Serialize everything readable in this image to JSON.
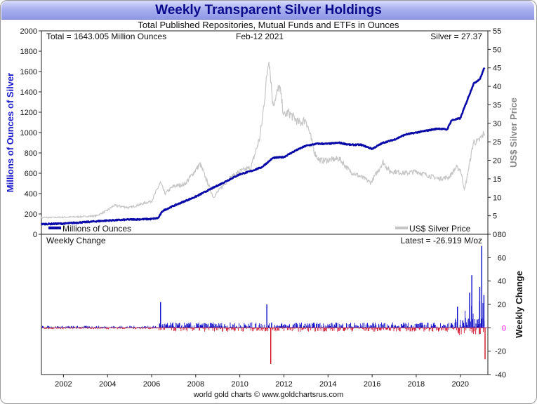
{
  "title": "Weekly Transparent Silver Holdings",
  "subtitle": "Total Published Repositories, Mutual Funds and ETFs in Ounces",
  "footer": "world gold charts © www.goldchartsrus.com",
  "colors": {
    "holdings": "#0a0aa8",
    "silver_price": "#c6c6c6",
    "change_positive": "#1010c8",
    "change_negative": "#d0102a",
    "zero_label": "#ff00ff",
    "title_text": "#0a0a8c"
  },
  "chart_data": [
    {
      "type": "line",
      "panel": "top",
      "info": {
        "total": "Total = 1643.005 Million Ounces",
        "date": "Feb-12  2021",
        "silver": "Silver = 27.37"
      },
      "ylabel": "Millions of Ounces of Silver",
      "ylabel_right": "US$ Silver Price",
      "ylim": [
        0,
        2000
      ],
      "ylim_right": [
        0,
        55
      ],
      "yticks": [
        0,
        200,
        400,
        600,
        800,
        1000,
        1200,
        1400,
        1600,
        1800,
        2000
      ],
      "yticks_right": [
        0,
        5,
        10,
        15,
        20,
        25,
        30,
        35,
        40,
        45,
        50,
        55
      ],
      "xlim": [
        2001.0,
        2021.25
      ],
      "grid": false,
      "legend": [
        {
          "label": "Millions of Ounces",
          "position": "bottom-left"
        },
        {
          "label": "US$ Silver Price",
          "position": "bottom-right"
        }
      ],
      "series": [
        {
          "name": "Millions of Ounces",
          "axis": "left",
          "x": [
            2001.0,
            2002.0,
            2003.0,
            2004.0,
            2005.0,
            2006.0,
            2006.3,
            2006.5,
            2007.0,
            2008.0,
            2009.0,
            2010.0,
            2010.5,
            2011.0,
            2011.5,
            2012.0,
            2012.5,
            2013.0,
            2013.5,
            2014.0,
            2014.5,
            2015.0,
            2015.5,
            2016.0,
            2016.5,
            2017.0,
            2017.5,
            2018.0,
            2018.5,
            2019.0,
            2019.4,
            2019.6,
            2020.0,
            2020.3,
            2020.6,
            2020.9,
            2021.1
          ],
          "values": [
            100,
            105,
            120,
            135,
            145,
            150,
            160,
            230,
            280,
            370,
            480,
            590,
            620,
            660,
            750,
            760,
            820,
            870,
            890,
            890,
            900,
            880,
            880,
            840,
            900,
            930,
            980,
            1000,
            1020,
            1040,
            1030,
            1120,
            1140,
            1310,
            1480,
            1530,
            1643
          ]
        },
        {
          "name": "US$ Silver Price",
          "axis": "right",
          "x": [
            2001.0,
            2002.0,
            2003.0,
            2003.5,
            2004.0,
            2004.3,
            2005.0,
            2006.0,
            2006.4,
            2006.6,
            2007.0,
            2007.5,
            2008.2,
            2008.8,
            2009.0,
            2009.5,
            2010.0,
            2010.5,
            2010.9,
            2011.0,
            2011.32,
            2011.5,
            2011.8,
            2012.0,
            2012.2,
            2012.7,
            2013.0,
            2013.4,
            2013.6,
            2014.0,
            2014.5,
            2015.0,
            2015.5,
            2015.95,
            2016.5,
            2016.8,
            2017.0,
            2017.5,
            2018.0,
            2018.5,
            2019.0,
            2019.5,
            2019.8,
            2020.0,
            2020.2,
            2020.6,
            2020.8,
            2021.1
          ],
          "values": [
            4.5,
            4.6,
            4.8,
            5.0,
            6.5,
            7.8,
            7.2,
            9.0,
            14.0,
            11.0,
            13.0,
            13.5,
            19.0,
            10.0,
            11.5,
            15.0,
            17.0,
            18.0,
            26.0,
            30.0,
            48.0,
            35.0,
            40.0,
            32.0,
            33.0,
            30.0,
            31.0,
            22.0,
            20.0,
            20.0,
            20.5,
            17.0,
            15.5,
            14.0,
            19.5,
            17.0,
            17.0,
            16.5,
            17.0,
            16.0,
            15.0,
            15.5,
            18.0,
            17.5,
            12.0,
            25.0,
            25.0,
            27.4
          ]
        }
      ]
    },
    {
      "type": "bar",
      "panel": "bottom",
      "title": "Weekly Change",
      "latest": "Latest = -26.919 M/oz",
      "ylabel": "Weekly Change",
      "ylim": [
        -40,
        80
      ],
      "yticks": [
        -40,
        -20,
        0,
        20,
        40,
        60,
        80
      ],
      "x_ticks": [
        "2002",
        "2004",
        "2006",
        "2008",
        "2010",
        "2012",
        "2014",
        "2016",
        "2018",
        "2020"
      ],
      "x_tick_values": [
        2002,
        2004,
        2006,
        2008,
        2010,
        2012,
        2014,
        2016,
        2018,
        2020
      ],
      "xlim": [
        2001.0,
        2021.25
      ],
      "notable_changes": {
        "x": [
          2006.38,
          2011.38,
          2011.2,
          2019.85,
          2020.4,
          2020.5,
          2020.86,
          2020.95,
          2021.05,
          2021.1
        ],
        "values": [
          22,
          -31,
          20,
          18,
          30,
          45,
          35,
          70,
          28,
          -27
        ]
      }
    }
  ]
}
